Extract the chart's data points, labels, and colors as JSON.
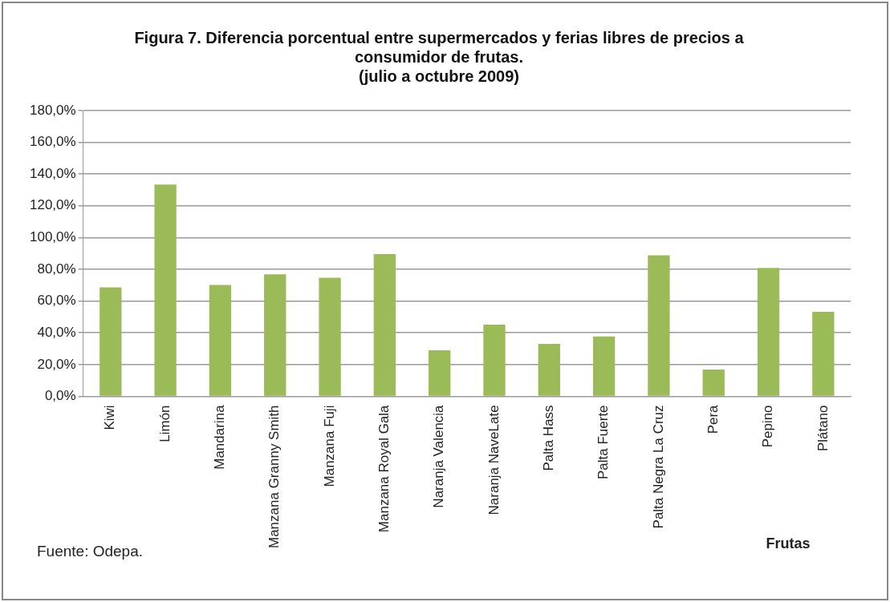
{
  "chart_data": {
    "type": "bar",
    "title": "Figura 7. Diferencia porcentual entre supermercados y ferias libres de precios a consumidor de frutas.\n(julio a octubre 2009)",
    "xlabel": "Frutas",
    "categories": [
      "Kiwi",
      "Limón",
      "Mandarina",
      "Manzana Granny Smith",
      "Manzana Fuji",
      "Manzana Royal Gala",
      "Naranja Valencia",
      "Naranja NaveLate",
      "Palta Hass",
      "Palta Fuerte",
      "Palta Negra La Cruz",
      "Pera",
      "Pepino",
      "Plátano"
    ],
    "values": [
      68.6,
      133.4,
      70.1,
      76.8,
      74.7,
      89.6,
      29.0,
      45.2,
      33.1,
      37.7,
      88.8,
      16.9,
      80.9,
      53.3
    ],
    "color": "#9bbb59",
    "ylim": [
      0,
      180
    ],
    "yticks": [
      {
        "value": 0,
        "label": "0,0%"
      },
      {
        "value": 20,
        "label": "20,0%"
      },
      {
        "value": 40,
        "label": "40,0%"
      },
      {
        "value": 60,
        "label": "60,0%"
      },
      {
        "value": 80,
        "label": "80,0%"
      },
      {
        "value": 100,
        "label": "100,0%"
      },
      {
        "value": 120,
        "label": "120,0%"
      },
      {
        "value": 140,
        "label": "140,0%"
      },
      {
        "value": 160,
        "label": "160,0%"
      },
      {
        "value": 180,
        "label": "180,0%"
      }
    ],
    "grid": "y",
    "annotations": [
      "Fuente: Odepa."
    ]
  }
}
